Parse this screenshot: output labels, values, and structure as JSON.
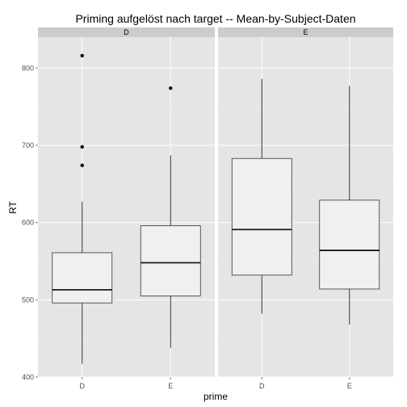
{
  "chart_data": {
    "type": "boxplot",
    "title": "Priming aufgelöst nach target -- Mean-by-Subject-Daten",
    "xlabel": "prime",
    "ylabel": "RT",
    "facet_variable": "target",
    "facets": [
      "D",
      "E"
    ],
    "categories": [
      "D",
      "E"
    ],
    "ylim": [
      400,
      840
    ],
    "y_ticks": [
      400,
      500,
      600,
      700,
      800
    ],
    "y_tick_labels": [
      "400",
      "500",
      "600",
      "700",
      "800"
    ],
    "grid": true,
    "legend": "none",
    "colors": {
      "panel_background": "#e5e5e5",
      "grid_major": "#ffffff",
      "grid_minor": "#f2f2f2",
      "strip_background": "#cccccc",
      "box_fill": "#f0f0f0",
      "box_line": "#333333",
      "median_line": "#1a1a1a",
      "outlier": "#000000",
      "tick_label": "#4d4d4d"
    },
    "boxes": [
      {
        "facet": "D",
        "category": "D",
        "min": 417,
        "q1": 496,
        "median": 513,
        "q3": 561,
        "max": 627,
        "outliers": [
          816,
          698,
          674
        ]
      },
      {
        "facet": "D",
        "category": "E",
        "min": 438,
        "q1": 505,
        "median": 548,
        "q3": 596,
        "max": 687,
        "outliers": [
          774
        ]
      },
      {
        "facet": "E",
        "category": "D",
        "min": 482,
        "q1": 532,
        "median": 591,
        "q3": 683,
        "max": 786,
        "outliers": []
      },
      {
        "facet": "E",
        "category": "E",
        "min": 468,
        "q1": 514,
        "median": 564,
        "q3": 629,
        "max": 777,
        "outliers": []
      }
    ]
  }
}
